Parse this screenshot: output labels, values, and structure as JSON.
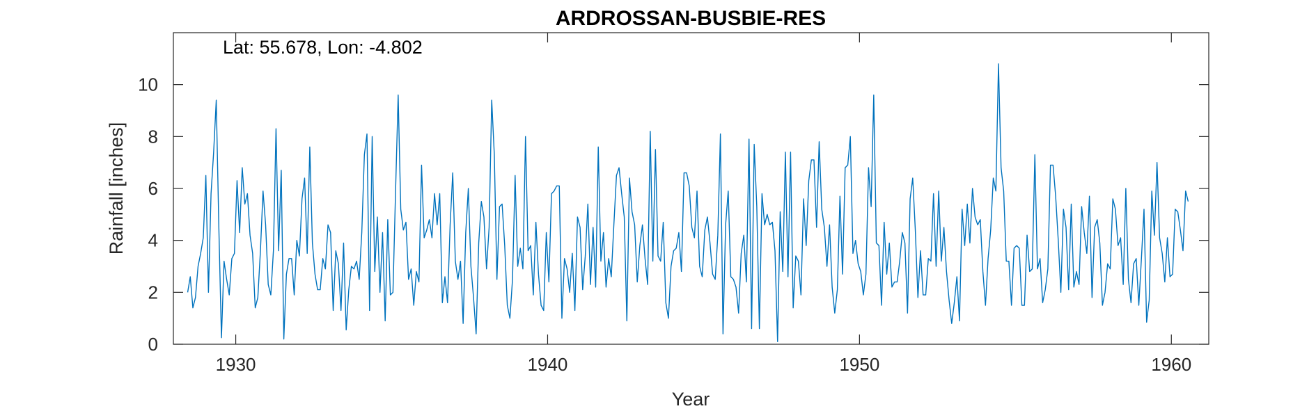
{
  "chart_data": {
    "type": "line",
    "title": "ARDROSSAN-BUSBIE-RES",
    "annotation": "Lat: 55.678, Lon: -4.802",
    "xlabel": "Year",
    "ylabel": "Rainfall [inches]",
    "xlim": [
      1928.0,
      1961.2
    ],
    "ylim": [
      0,
      12
    ],
    "xticks": [
      1930,
      1940,
      1950,
      1960
    ],
    "yticks": [
      0,
      2,
      4,
      6,
      8,
      10
    ],
    "grid": false,
    "legend": "none",
    "line_color": "#0072BD",
    "x_start": 1928.458,
    "x_step": 0.08333,
    "series": [
      {
        "values": [
          2.0,
          2.6,
          1.4,
          1.8,
          3.0,
          3.5,
          4.1,
          6.5,
          2.0,
          5.8,
          7.4,
          9.4,
          4.5,
          0.25,
          3.2,
          2.5,
          1.9,
          3.3,
          3.5,
          6.3,
          4.3,
          6.8,
          5.4,
          5.8,
          4.2,
          3.5,
          1.4,
          1.8,
          3.6,
          5.9,
          4.6,
          2.3,
          1.9,
          3.6,
          8.3,
          3.6,
          6.7,
          0.2,
          2.7,
          3.3,
          3.3,
          1.9,
          4.0,
          3.4,
          5.6,
          6.4,
          3.5,
          7.6,
          3.9,
          2.7,
          2.1,
          2.1,
          3.3,
          2.9,
          4.6,
          4.3,
          1.3,
          3.6,
          3.1,
          1.3,
          3.9,
          0.55,
          2.1,
          3.0,
          2.9,
          3.2,
          2.5,
          4.3,
          7.3,
          8.1,
          1.3,
          8.0,
          2.8,
          4.9,
          2.0,
          4.3,
          0.9,
          4.8,
          1.9,
          2.0,
          5.9,
          9.6,
          5.2,
          4.4,
          4.7,
          2.5,
          2.9,
          1.5,
          2.8,
          2.4,
          6.9,
          4.1,
          4.4,
          4.8,
          4.1,
          5.8,
          4.6,
          5.8,
          1.6,
          2.6,
          1.6,
          4.6,
          6.6,
          3.2,
          2.5,
          3.2,
          0.8,
          4.3,
          6.0,
          3.0,
          1.8,
          0.4,
          3.9,
          5.5,
          4.9,
          2.9,
          4.5,
          9.4,
          7.3,
          2.5,
          5.3,
          5.4,
          3.8,
          1.5,
          1.0,
          2.5,
          6.5,
          3.0,
          3.7,
          2.9,
          8.0,
          3.6,
          3.8,
          1.9,
          4.7,
          2.7,
          1.5,
          1.3,
          4.3,
          2.4,
          5.8,
          5.9,
          6.1,
          6.1,
          1.0,
          3.3,
          2.9,
          2.0,
          3.5,
          1.3,
          4.9,
          4.5,
          2.1,
          3.4,
          5.4,
          2.3,
          4.5,
          2.2,
          7.6,
          3.2,
          4.3,
          2.2,
          3.3,
          2.6,
          4.6,
          6.5,
          6.8,
          5.8,
          4.9,
          0.9,
          6.4,
          5.1,
          4.6,
          2.4,
          3.8,
          4.6,
          3.3,
          2.3,
          8.2,
          3.2,
          7.5,
          3.4,
          3.2,
          4.7,
          1.6,
          1.0,
          3.0,
          3.6,
          3.7,
          4.3,
          2.8,
          6.6,
          6.6,
          6.1,
          4.5,
          4.1,
          5.9,
          3.0,
          2.6,
          4.4,
          4.9,
          3.9,
          2.7,
          2.5,
          4.2,
          8.1,
          0.4,
          4.6,
          5.9,
          2.6,
          2.5,
          2.2,
          1.2,
          3.5,
          4.2,
          2.4,
          7.9,
          0.6,
          7.7,
          5.3,
          0.6,
          5.8,
          4.6,
          5.0,
          4.6,
          4.7,
          3.6,
          0.1,
          5.1,
          2.8,
          7.4,
          2.6,
          7.4,
          1.4,
          3.4,
          3.2,
          1.9,
          5.6,
          3.8,
          6.3,
          7.1,
          7.1,
          4.5,
          7.8,
          5.2,
          4.5,
          3.0,
          4.6,
          2.2,
          1.2,
          2.1,
          5.7,
          2.7,
          6.8,
          6.9,
          8.0,
          3.5,
          4.0,
          3.1,
          2.8,
          1.9,
          2.7,
          6.8,
          5.3,
          9.6,
          3.9,
          3.8,
          1.5,
          4.7,
          2.7,
          3.9,
          2.2,
          2.4,
          2.4,
          3.2,
          4.3,
          3.9,
          1.2,
          5.6,
          6.4,
          4.4,
          1.8,
          3.6,
          1.9,
          1.9,
          3.3,
          3.2,
          5.8,
          3.0,
          5.9,
          3.2,
          4.5,
          2.8,
          1.7,
          0.8,
          1.6,
          2.6,
          0.9,
          5.2,
          3.8,
          5.4,
          3.9,
          6.0,
          4.9,
          4.6,
          4.8,
          2.8,
          1.5,
          3.3,
          4.4,
          6.4,
          5.9,
          10.8,
          6.8,
          5.9,
          3.2,
          3.2,
          1.5,
          3.7,
          3.8,
          3.7,
          1.5,
          1.5,
          4.2,
          2.8,
          2.9,
          7.3,
          2.9,
          3.3,
          1.6,
          2.1,
          2.9,
          6.9,
          6.9,
          5.7,
          4.0,
          2.0,
          5.2,
          4.5,
          2.1,
          5.4,
          2.2,
          2.8,
          2.3,
          5.3,
          4.3,
          3.5,
          5.7,
          1.8,
          4.5,
          4.8,
          3.9,
          1.5,
          2.0,
          3.1,
          2.9,
          5.6,
          5.2,
          3.8,
          4.1,
          2.3,
          6.0,
          2.5,
          1.6,
          3.1,
          3.3,
          1.5,
          3.3,
          5.2,
          0.85,
          1.7,
          5.9,
          4.2,
          7.0,
          4.1,
          3.5,
          2.4,
          4.1,
          2.6,
          2.7,
          5.2,
          5.1,
          4.4,
          3.6,
          5.9,
          5.5
        ]
      }
    ]
  }
}
